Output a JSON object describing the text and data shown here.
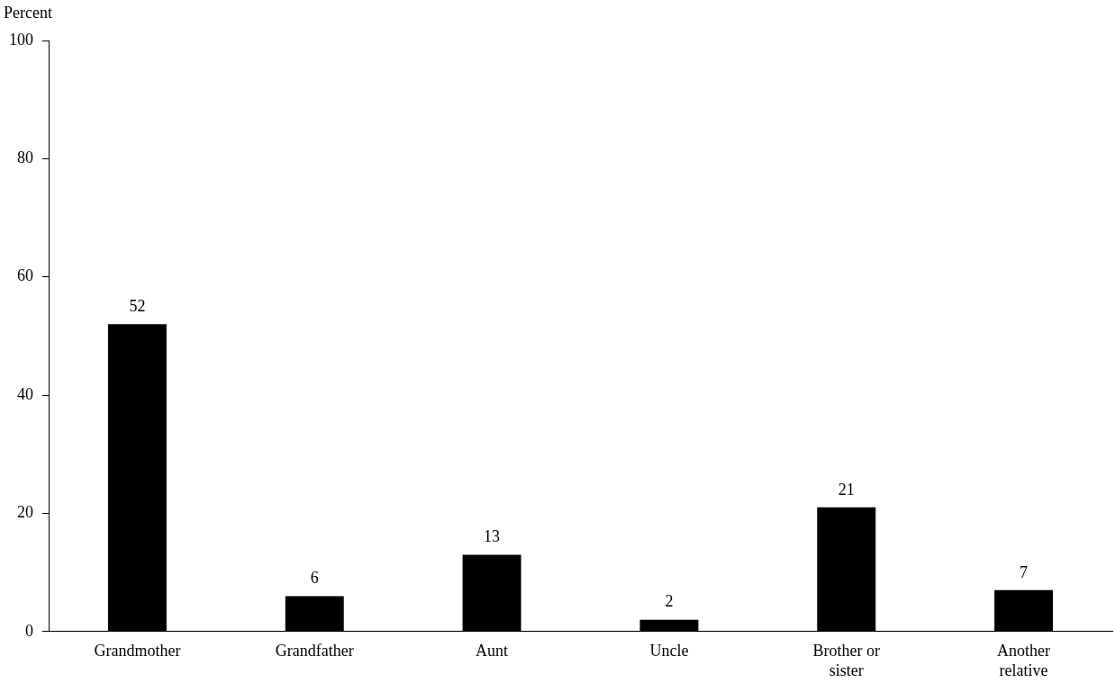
{
  "chart_data": {
    "type": "bar",
    "ylabel": "Percent",
    "categories": [
      "Grandmother",
      "Grandfather",
      "Aunt",
      "Uncle",
      "Brother or sister",
      "Another relative"
    ],
    "values": [
      52,
      6,
      13,
      2,
      21,
      7
    ],
    "color": "#000000",
    "ylim": [
      0,
      100
    ],
    "yticks": [
      0,
      20,
      40,
      60,
      80,
      100
    ],
    "grid": false,
    "legend": false,
    "data_labels": true
  }
}
